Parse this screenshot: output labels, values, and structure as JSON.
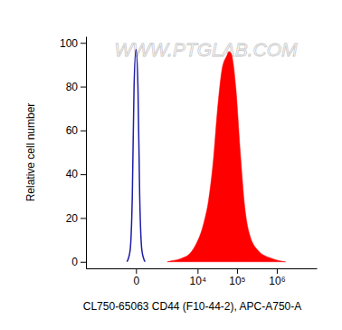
{
  "chart_data": {
    "type": "line",
    "x_label": "CL750-65063 CD44 (F10-44-2), APC-A750-A",
    "y_label": "Relative cell number",
    "annotations": [
      {
        "text": "WWW.PTGLAB.COM"
      }
    ],
    "log": "x",
    "xlim": [
      -5000,
      10000000
    ],
    "xticks": [
      0,
      {
        "value": 10000,
        "label": "10⁴"
      },
      {
        "value": 100000,
        "label": "10⁵"
      },
      {
        "value": 1000000,
        "label": "10⁶"
      }
    ],
    "ylim": [
      -3,
      103
    ],
    "yticks": [
      0,
      20,
      40,
      60,
      80,
      100
    ],
    "grid": false,
    "series": [
      {
        "type": "line",
        "color": "#1f1fa8",
        "x": [
          -200,
          -120,
          -70,
          -35,
          0,
          35,
          70,
          120,
          200
        ],
        "values": [
          0,
          5,
          30,
          80,
          97,
          80,
          30,
          5,
          0
        ]
      },
      {
        "type": "area",
        "color": "#ff0000",
        "x": [
          1500,
          2100,
          3700,
          6500,
          8500,
          14600,
          19100,
          24900,
          32400,
          42100,
          55000,
          63000,
          71700,
          93000,
          121000,
          157000,
          203000,
          345000,
          755000,
          1660000
        ],
        "values": [
          0,
          0.5,
          1.5,
          4,
          7,
          18,
          28,
          45,
          70,
          88,
          94,
          96,
          95,
          80,
          50,
          25,
          13,
          5,
          1.5,
          0
        ]
      }
    ]
  }
}
